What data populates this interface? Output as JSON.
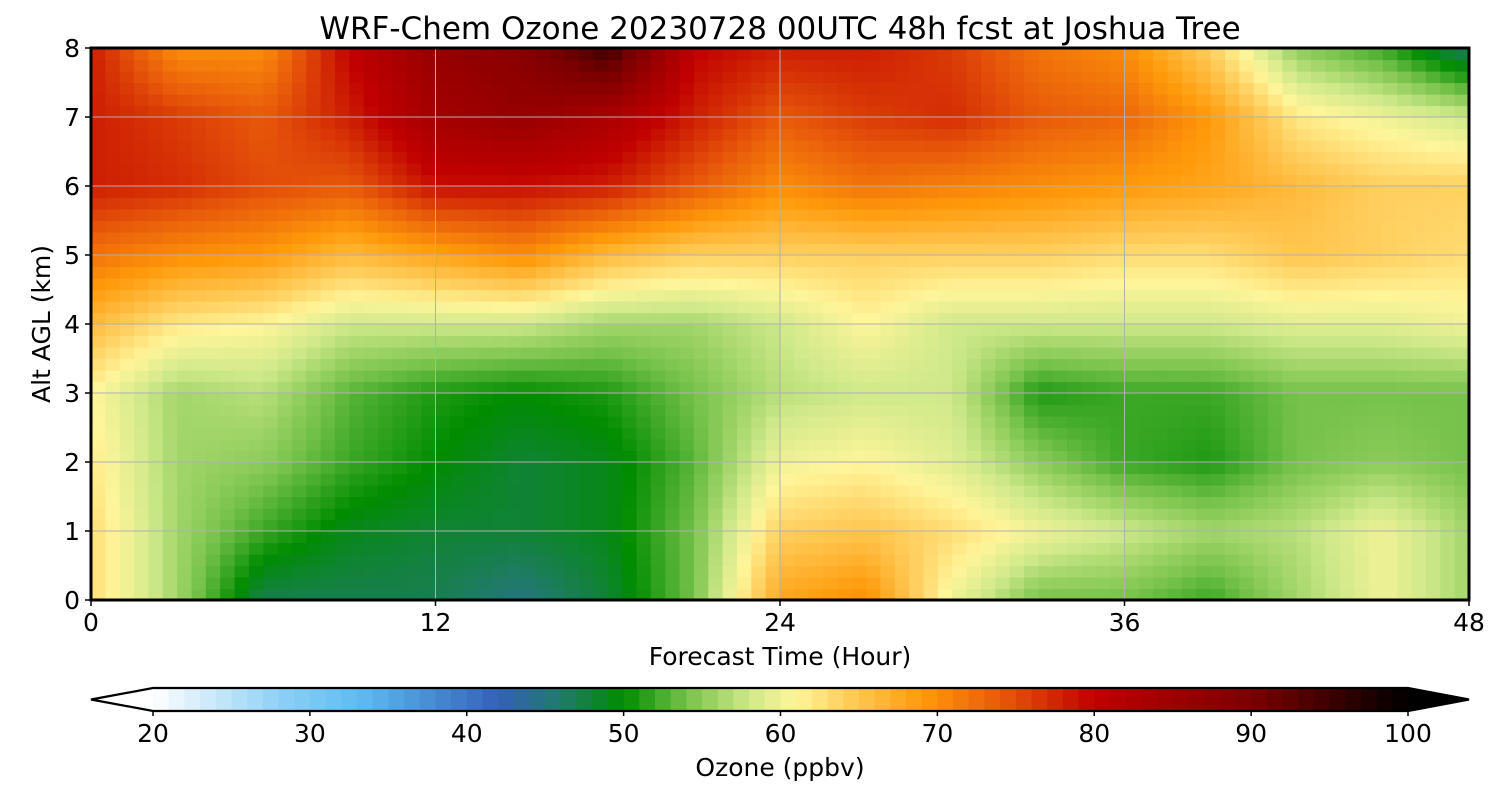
{
  "chart_data": {
    "type": "heatmap",
    "title": "WRF-Chem Ozone  20230728 00UTC 48h fcst at Joshua Tree",
    "xlabel": "Forecast Time (Hour)",
    "ylabel": "Alt AGL (km)",
    "xlim": [
      0,
      48
    ],
    "ylim": [
      0,
      8
    ],
    "xticks": [
      0,
      12,
      24,
      36,
      48
    ],
    "yticks": [
      0,
      1,
      2,
      3,
      4,
      5,
      6,
      7,
      8
    ],
    "grid": true,
    "x": [
      0,
      3,
      6,
      9,
      12,
      15,
      18,
      21,
      24,
      27,
      30,
      33,
      36,
      39,
      42,
      45,
      48
    ],
    "y": [
      0,
      1,
      2,
      3,
      4,
      5,
      6,
      7,
      8
    ],
    "z": [
      [
        63,
        56,
        47,
        47,
        47,
        45,
        48,
        54,
        68,
        70,
        60,
        54,
        54,
        52,
        56,
        60,
        56
      ],
      [
        63,
        56,
        52,
        49,
        48,
        48,
        49,
        54,
        64,
        65,
        63,
        60,
        58,
        56,
        57,
        60,
        56
      ],
      [
        62,
        56,
        55,
        52,
        50,
        48,
        49,
        53,
        60,
        61,
        59,
        55,
        52,
        51,
        54,
        55,
        54
      ],
      [
        61,
        56,
        57,
        53,
        51,
        50,
        51,
        54,
        57,
        58,
        58,
        51,
        52,
        52,
        54,
        54,
        54
      ],
      [
        66,
        62,
        61,
        58,
        58,
        58,
        56,
        56,
        58,
        61,
        58,
        58,
        58,
        58,
        59,
        59,
        60
      ],
      [
        72,
        70,
        69,
        66,
        68,
        70,
        66,
        64,
        64,
        64,
        64,
        64,
        63,
        63,
        65,
        64,
        63
      ],
      [
        78,
        77,
        75,
        74,
        79,
        79,
        78,
        74,
        70,
        72,
        71,
        70,
        69,
        68,
        66,
        64,
        64
      ],
      [
        78,
        76,
        74,
        78,
        84,
        86,
        83,
        78,
        74,
        76,
        77,
        74,
        73,
        69,
        62,
        60,
        58
      ],
      [
        78,
        70,
        70,
        80,
        86,
        88,
        95,
        80,
        78,
        78,
        76,
        72,
        70,
        64,
        55,
        52,
        46
      ]
    ],
    "colorbar": {
      "label": "Ozone  (ppbv)",
      "min": 20,
      "max": 100,
      "ticks": [
        20,
        30,
        40,
        50,
        60,
        70,
        80,
        90,
        100
      ],
      "extend": "both",
      "stops": [
        {
          "v": 20,
          "c": "#ffffff"
        },
        {
          "v": 28,
          "c": "#8fd0f5"
        },
        {
          "v": 33,
          "c": "#5ebdf2"
        },
        {
          "v": 42,
          "c": "#3460b8"
        },
        {
          "v": 46,
          "c": "#207a6a"
        },
        {
          "v": 50,
          "c": "#008c00"
        },
        {
          "v": 54,
          "c": "#76c24a"
        },
        {
          "v": 58,
          "c": "#cfe98a"
        },
        {
          "v": 61,
          "c": "#fff59a"
        },
        {
          "v": 64,
          "c": "#ffd060"
        },
        {
          "v": 69,
          "c": "#ff9a0a"
        },
        {
          "v": 74,
          "c": "#e85a0a"
        },
        {
          "v": 80,
          "c": "#c00000"
        },
        {
          "v": 90,
          "c": "#7a0000"
        },
        {
          "v": 100,
          "c": "#000000"
        }
      ]
    }
  }
}
